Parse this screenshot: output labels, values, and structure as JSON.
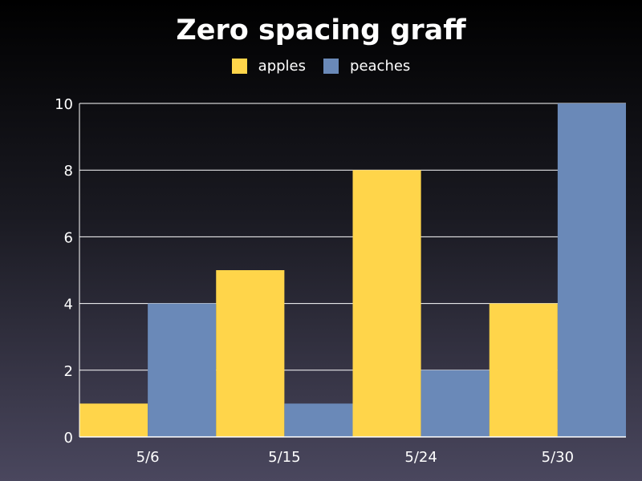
{
  "chart_data": {
    "type": "bar",
    "title": "Zero spacing graff",
    "categories": [
      "5/6",
      "5/15",
      "5/24",
      "5/30"
    ],
    "series": [
      {
        "name": "apples",
        "values": [
          1,
          5,
          8,
          4
        ],
        "color": "#FFD54A"
      },
      {
        "name": "peaches",
        "values": [
          4,
          1,
          2,
          10
        ],
        "color": "#6A89B8"
      }
    ],
    "ylim": [
      0,
      10
    ],
    "yticks": [
      0,
      2,
      4,
      6,
      8,
      10
    ],
    "grid": true,
    "legend_position": "top-center",
    "bar_spacing": 0
  }
}
